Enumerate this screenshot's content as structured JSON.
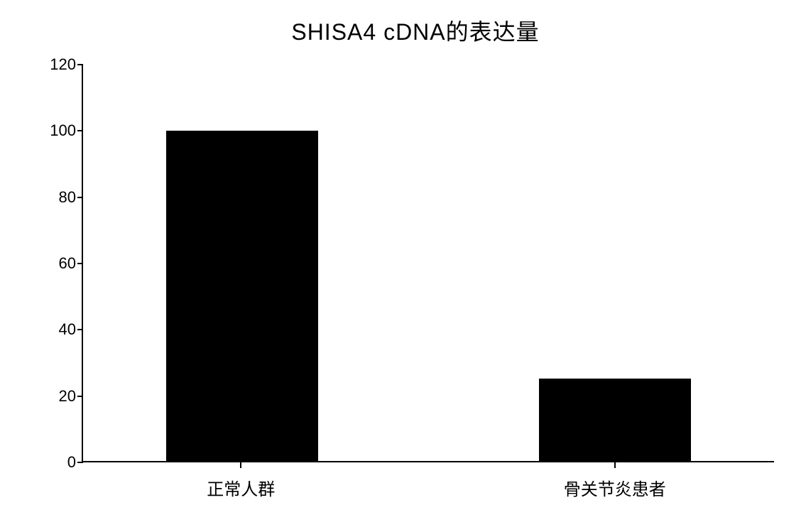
{
  "chart": {
    "type": "bar",
    "title": "SHISA4 cDNA的表达量",
    "title_fontsize": 32,
    "title_color": "#000000",
    "background_color": "#ffffff",
    "categories": [
      "正常人群",
      "骨关节炎患者"
    ],
    "values": [
      100,
      25
    ],
    "bar_colors": [
      "#000000",
      "#000000"
    ],
    "bar_width_percent": 22,
    "bar_positions_percent": [
      23,
      77
    ],
    "ylim": [
      0,
      120
    ],
    "ytick_step": 20,
    "yticks": [
      0,
      20,
      40,
      60,
      80,
      100,
      120
    ],
    "ytick_fontsize": 22,
    "xlabel_fontsize": 24,
    "axis_color": "#000000",
    "axis_width": 2,
    "tick_length": 8
  }
}
